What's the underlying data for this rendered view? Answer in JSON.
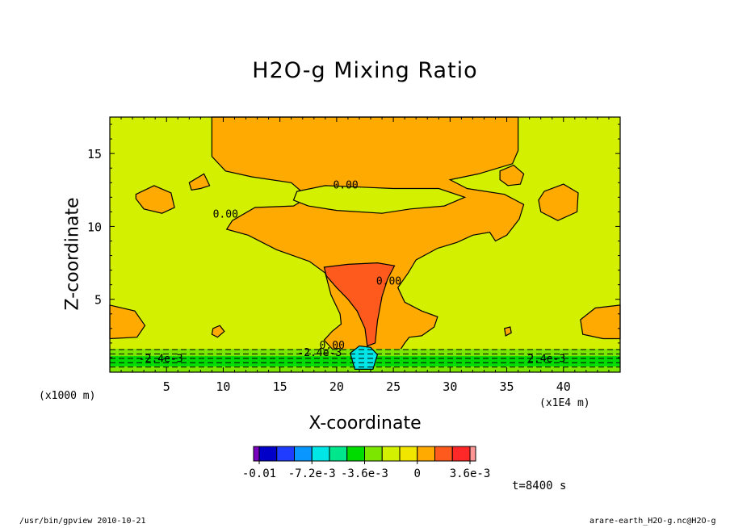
{
  "chart_data": {
    "type": "heatmap",
    "title": "H2O-g Mixing Ratio",
    "xlabel": "X-coordinate",
    "ylabel": "Z-coordinate",
    "x_unit": "(x1000 m)",
    "x_multiplier": "(x1E4 m)",
    "xlim": [
      0,
      45
    ],
    "ylim": [
      0,
      17.5
    ],
    "x_ticks": [
      "5",
      "10",
      "15",
      "20",
      "25",
      "30",
      "35",
      "40"
    ],
    "y_ticks": [
      "5",
      "10",
      "15"
    ],
    "x_tick_values": [
      5,
      10,
      15,
      20,
      25,
      30,
      35,
      40
    ],
    "y_tick_values": [
      5,
      10,
      15
    ],
    "contour_labels": [
      {
        "text": "0.00",
        "x": 20.8,
        "y": 12.6
      },
      {
        "text": "0.00",
        "x": 10.2,
        "y": 10.6
      },
      {
        "text": "0.00",
        "x": 24.6,
        "y": 6.0
      },
      {
        "text": "0.00",
        "x": 19.6,
        "y": 1.6
      },
      {
        "text": "-2.4e-3",
        "x": 4.5,
        "y": 0.7
      },
      {
        "text": "-2.4e-3",
        "x": 18.5,
        "y": 1.1
      },
      {
        "text": "2.4e-3",
        "x": 38.5,
        "y": 0.7
      }
    ],
    "colorbar": {
      "colors": [
        "#7a00c0",
        "#0000c8",
        "#1f3cff",
        "#0a96ff",
        "#00e6e6",
        "#00e68c",
        "#00dc00",
        "#7ce600",
        "#d2f000",
        "#f0e600",
        "#ffaa00",
        "#ff5a1e",
        "#ff2828",
        "#ff9696"
      ],
      "tick_labels": [
        "-0.01",
        "-7.2e-3",
        "-3.6e-3",
        "0",
        "3.6e-3"
      ],
      "tick_values": [
        -0.0108,
        -0.0072,
        -0.0036,
        0,
        0.0036
      ]
    },
    "field_colors": {
      "background": "#d2f000",
      "positive": "#ffaa00",
      "core": "#ff5a1e",
      "band_green": "#00dc00",
      "band_light": "#7ce600",
      "band_cyan": "#00e6e6"
    }
  },
  "time_label": "t=8400 s",
  "footer_left": "/usr/bin/gpview  2010-10-21",
  "footer_right": "arare-earth_H2O-g.nc@H2O-g"
}
